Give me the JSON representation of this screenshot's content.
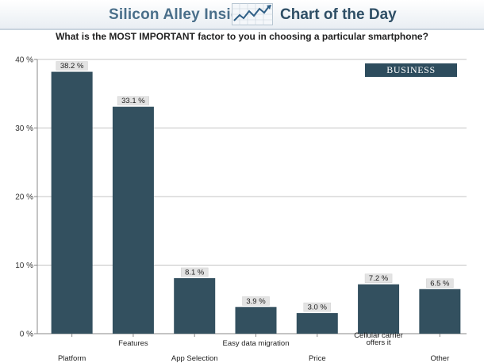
{
  "header": {
    "brand": "Silicon Alley Insider",
    "logo_icon": "rising-line-chart-icon",
    "section": "Chart of the Day"
  },
  "watermark": "BUSINESS INSIDER",
  "colors": {
    "bar": "#33505f",
    "label_bg": "#e3e3e3",
    "header_brand": "#4a6f8a"
  },
  "chart_data": {
    "type": "bar",
    "title": "What is the MOST IMPORTANT factor to you in choosing a particular smartphone?",
    "categories": [
      "Platform",
      "Features",
      "App Selection",
      "Easy data migration",
      "Price",
      "Cellular carrier offers it",
      "Other"
    ],
    "category_labels": [
      [
        "Platform"
      ],
      [
        "Features"
      ],
      [
        "App Selection"
      ],
      [
        "Easy data migration"
      ],
      [
        "Price"
      ],
      [
        "Cellular carrier",
        "offers it"
      ],
      [
        "Other"
      ]
    ],
    "values": [
      38.2,
      33.1,
      8.1,
      3.9,
      3.0,
      7.2,
      6.5
    ],
    "value_labels": [
      "38.2 %",
      "33.1 %",
      "8.1 %",
      "3.9 %",
      "3.0 %",
      "7.2 %",
      "6.5 %"
    ],
    "ylim": [
      0,
      40
    ],
    "yticks": [
      0,
      10,
      20,
      30,
      40
    ],
    "ytick_labels": [
      "0 %",
      "10 %",
      "20 %",
      "30 %",
      "40 %"
    ],
    "xlabel": "",
    "ylabel": "",
    "grid": true,
    "legend": "none"
  }
}
